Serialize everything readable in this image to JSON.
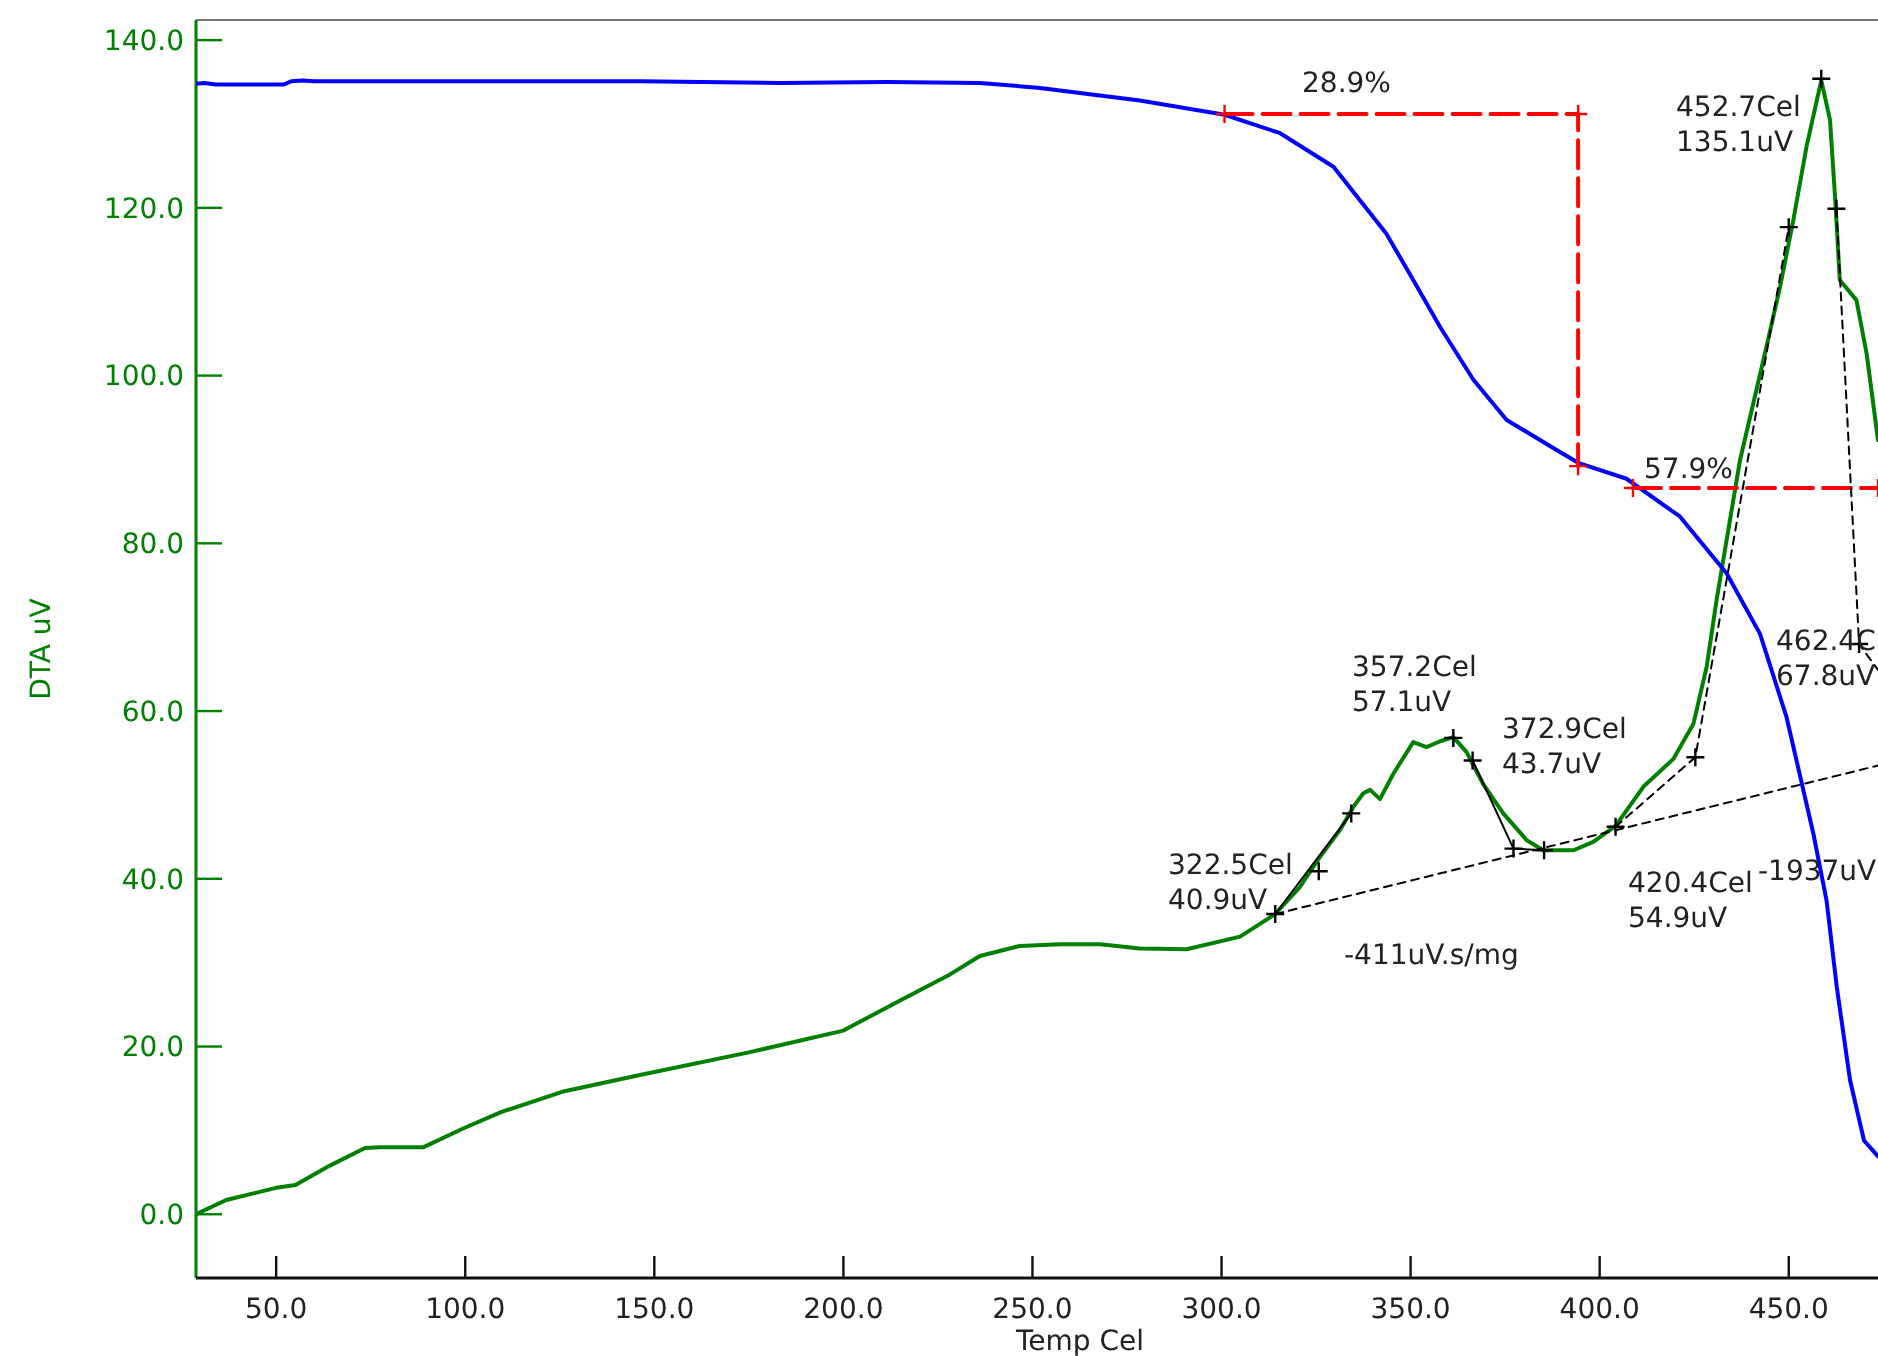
{
  "chart_data": {
    "type": "line",
    "xlabel": "Temp Cel",
    "ylabel": "DTA uV",
    "xlim": [
      28.8,
      473.6
    ],
    "ylim": [
      -7.6,
      142.4
    ],
    "xticks": [
      {
        "value": 50,
        "label": "50.0"
      },
      {
        "value": 100,
        "label": "100.0"
      },
      {
        "value": 150,
        "label": "150.0"
      },
      {
        "value": 200,
        "label": "200.0"
      },
      {
        "value": 250,
        "label": "250.0"
      },
      {
        "value": 300,
        "label": "300.0"
      },
      {
        "value": 350,
        "label": "350.0"
      },
      {
        "value": 400,
        "label": "400.0"
      },
      {
        "value": 450,
        "label": "450.0"
      }
    ],
    "yticks": [
      {
        "value": 0,
        "label": "0.0"
      },
      {
        "value": 20,
        "label": "20.0"
      },
      {
        "value": 40,
        "label": "40.0"
      },
      {
        "value": 60,
        "label": "60.0"
      },
      {
        "value": 80,
        "label": "80.0"
      },
      {
        "value": 100,
        "label": "100.0"
      },
      {
        "value": 120,
        "label": "120.0"
      },
      {
        "value": 140,
        "label": "140.0"
      }
    ],
    "series": [
      {
        "color": "#008000",
        "x": [
          28.8,
          36.8,
          45.9,
          50.5,
          55.1,
          64.2,
          73.5,
          77.6,
          89.0,
          99.3,
          109.6,
          125.6,
          146.2,
          175,
          200,
          215.0,
          228.2,
          236.1,
          246.7,
          257.3,
          267.9,
          278.4,
          290.8,
          304.9,
          314.2,
          320.7,
          326.0,
          331.3,
          334.9,
          337.5,
          339.3,
          341.9,
          345.4,
          350.7,
          354.2,
          357.8,
          361.3,
          364.8,
          369.2,
          374.5,
          380.7,
          385.1,
          393.1,
          398.3,
          404.2,
          411.6,
          419.5,
          424.8,
          428.3,
          430.9,
          437.1,
          444.1,
          447.7,
          451.2,
          454.7,
          458.6,
          460.9,
          462.3,
          463.5,
          467.9,
          470.6,
          473.6
        ],
        "values": [
          0.0,
          1.7,
          2.7,
          3.2,
          3.5,
          5.8,
          7.9,
          8.0,
          8.0,
          10.2,
          12.2,
          14.6,
          16.6,
          19.3,
          21.9,
          25.5,
          28.6,
          30.8,
          32.0,
          32.2,
          32.2,
          31.7,
          31.6,
          33.1,
          35.8,
          39.0,
          42.6,
          45.8,
          48.6,
          50.2,
          50.6,
          49.5,
          52.5,
          56.3,
          55.7,
          56.4,
          56.9,
          55.1,
          51.3,
          47.8,
          44.6,
          43.4,
          43.4,
          44.4,
          46.3,
          51.0,
          54.3,
          58.5,
          65.3,
          73.2,
          89.9,
          103.4,
          110.6,
          118.5,
          127.3,
          135.2,
          130.5,
          120.9,
          111.4,
          109.0,
          102.6,
          92.3
        ]
      },
      {
        "color": "#0000ff",
        "x": [
          28.8,
          31.0,
          34.0,
          52.0,
          54.0,
          57.0,
          60.0,
          146.2,
          183.2,
          211.4,
          236.1,
          252.0,
          278.4,
          300.8,
          315.5,
          329.6,
          336.6,
          343.6,
          350.7,
          357.8,
          366.6,
          375.4,
          389.5,
          394.3,
          407.1,
          421.2,
          433.6,
          442.4,
          449.4,
          456.5,
          460.0,
          462.7,
          466.2,
          469.9,
          473.6
        ],
        "values": [
          134.8,
          134.9,
          134.7,
          134.7,
          135.1,
          135.2,
          135.1,
          135.1,
          134.9,
          135.0,
          134.9,
          134.3,
          132.8,
          131.1,
          128.9,
          124.9,
          120.9,
          116.9,
          111.4,
          105.8,
          99.5,
          94.7,
          90.9,
          89.6,
          87.7,
          83.2,
          76.4,
          69.2,
          59.3,
          45.4,
          37.4,
          27.1,
          16.0,
          8.8,
          6.9
        ]
      },
      {
        "color": "#ff0000",
        "line_style": "dashed",
        "marker": "cross",
        "x": [
          300.8,
          394.3,
          394.3
        ],
        "values": [
          131.2,
          131.2,
          89.2
        ]
      },
      {
        "color": "#ff0000",
        "line_style": "dashed",
        "marker": "cross",
        "x": [
          408.8,
          473.6
        ],
        "values": [
          86.6,
          86.6
        ]
      },
      {
        "color": "#000000",
        "line_style": "dashed",
        "x": [
          314.2,
          473.6
        ],
        "values": [
          35.8,
          53.5
        ]
      },
      {
        "color": "#000000",
        "line_style": "solid",
        "x": [
          314.2,
          334.3
        ],
        "values": [
          35.8,
          47.8
        ]
      },
      {
        "color": "#000000",
        "line_style": "solid",
        "x": [
          366.4,
          377.2,
          385.3
        ],
        "values": [
          54.1,
          43.6,
          43.4
        ]
      },
      {
        "color": "#000000",
        "line_style": "dashed",
        "x": [
          404.2,
          425.3,
          450.0
        ],
        "values": [
          46.2,
          54.5,
          117.7
        ]
      },
      {
        "color": "#000000",
        "line_style": "dashed",
        "x": [
          462.6,
          468.6,
          473.6
        ],
        "values": [
          119.9,
          68.0,
          64.9
        ]
      },
      {
        "type": "scatter",
        "color": "#000000",
        "marker": "cross",
        "x": [
          314.2,
          325.7,
          334.3,
          361.3,
          366.4,
          377.2,
          385.3,
          404.2,
          425.3,
          450.0,
          458.6,
          462.6,
          468.6
        ],
        "values": [
          35.8,
          40.9,
          47.8,
          56.8,
          54.1,
          43.6,
          43.4,
          46.2,
          54.5,
          117.7,
          135.4,
          119.9,
          68.0
        ]
      }
    ],
    "annotations": [
      "28.9%",
      "57.9%",
      "452.7Cel\n135.1uV",
      "357.2Cel\n57.1uV",
      "372.9Cel\n43.7uV",
      "322.5Cel\n40.9uV",
      "420.4Cel\n54.9uV",
      "-1937uV",
      "462.4C\n67.8uV",
      "-411uV.s/mg"
    ]
  }
}
